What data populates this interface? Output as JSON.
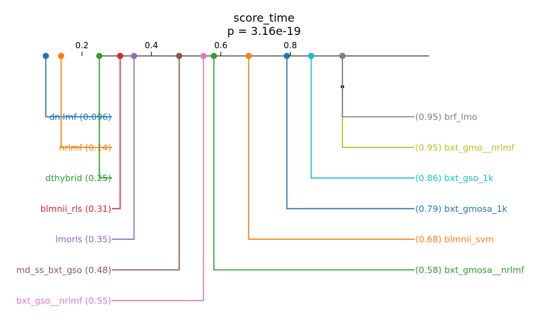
{
  "chart_data": {
    "type": "critical-difference-diagram",
    "title": "score_time",
    "subtitle": "p = 3.16e-19",
    "axis": {
      "range": [
        0.04,
        1.0
      ],
      "ticks": [
        0.2,
        0.4,
        0.6,
        0.8
      ]
    },
    "left_entries": [
      {
        "name": "dnilmf",
        "value": 0.096,
        "label": "dnilmf (0.096)",
        "color": "#1f77b4"
      },
      {
        "name": "nrlmf",
        "value": 0.14,
        "label": "nrlmf (0.14)",
        "color": "#ff7f0e"
      },
      {
        "name": "dthybrid",
        "value": 0.25,
        "label": "dthybrid (0.25)",
        "color": "#2ca02c"
      },
      {
        "name": "blmnii_rls",
        "value": 0.31,
        "label": "blmnii_rls (0.31)",
        "color": "#d62728"
      },
      {
        "name": "lmorls",
        "value": 0.35,
        "label": "lmorls (0.35)",
        "color": "#9467bd"
      },
      {
        "name": "md_ss_bxt_gso",
        "value": 0.48,
        "label": "md_ss_bxt_gso (0.48)",
        "color": "#8c564b"
      },
      {
        "name": "bxt_gso__nrlmf",
        "value": 0.55,
        "label": "bxt_gso__nrlmf (0.55)",
        "color": "#e377c2"
      }
    ],
    "right_entries": [
      {
        "name": "brf_lmo",
        "value": 0.95,
        "label": "(0.95) brf_lmo",
        "color": "#7f7f7f"
      },
      {
        "name": "bxt_gmo__nrlmf",
        "value": 0.95,
        "label": "(0.95) bxt_gmo__nrlmf",
        "color": "#bcbd22"
      },
      {
        "name": "bxt_gso_1k",
        "value": 0.86,
        "label": "(0.86) bxt_gso_1k",
        "color": "#17becf"
      },
      {
        "name": "bxt_gmosa_1k",
        "value": 0.79,
        "label": "(0.79) bxt_gmosa_1k",
        "color": "#1f77b4"
      },
      {
        "name": "blmnii_svm",
        "value": 0.68,
        "label": "(0.68) blmnii_svm",
        "color": "#ff7f0e"
      },
      {
        "name": "bxt_gmosa__nrlmf",
        "value": 0.58,
        "label": "(0.58) bxt_gmosa__nrlmf",
        "color": "#2ca02c"
      }
    ],
    "cliques": [
      {
        "members": [
          "brf_lmo",
          "bxt_gmo__nrlmf"
        ],
        "color": "#000000"
      }
    ]
  }
}
